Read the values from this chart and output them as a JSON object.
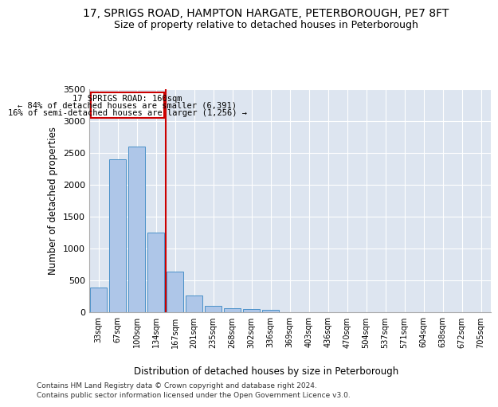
{
  "title_line1": "17, SPRIGS ROAD, HAMPTON HARGATE, PETERBOROUGH, PE7 8FT",
  "title_line2": "Size of property relative to detached houses in Peterborough",
  "xlabel": "Distribution of detached houses by size in Peterborough",
  "ylabel": "Number of detached properties",
  "footer_line1": "Contains HM Land Registry data © Crown copyright and database right 2024.",
  "footer_line2": "Contains public sector information licensed under the Open Government Licence v3.0.",
  "annotation_line1": "17 SPRIGS ROAD: 160sqm",
  "annotation_line2": "← 84% of detached houses are smaller (6,391)",
  "annotation_line3": "16% of semi-detached houses are larger (1,256) →",
  "bar_color": "#aec6e8",
  "bar_edge_color": "#4a90c8",
  "vline_color": "#cc0000",
  "annotation_box_color": "#ffffff",
  "annotation_box_edge": "#cc0000",
  "categories": [
    "33sqm",
    "67sqm",
    "100sqm",
    "134sqm",
    "167sqm",
    "201sqm",
    "235sqm",
    "268sqm",
    "302sqm",
    "336sqm",
    "369sqm",
    "403sqm",
    "436sqm",
    "470sqm",
    "504sqm",
    "537sqm",
    "571sqm",
    "604sqm",
    "638sqm",
    "672sqm",
    "705sqm"
  ],
  "values": [
    390,
    2400,
    2600,
    1250,
    640,
    260,
    95,
    60,
    55,
    40,
    0,
    0,
    0,
    0,
    0,
    0,
    0,
    0,
    0,
    0,
    0
  ],
  "ylim": [
    0,
    3500
  ],
  "yticks": [
    0,
    500,
    1000,
    1500,
    2000,
    2500,
    3000,
    3500
  ],
  "background_color": "#dde5f0",
  "grid_color": "#ffffff",
  "title_fontsize": 10,
  "subtitle_fontsize": 9
}
